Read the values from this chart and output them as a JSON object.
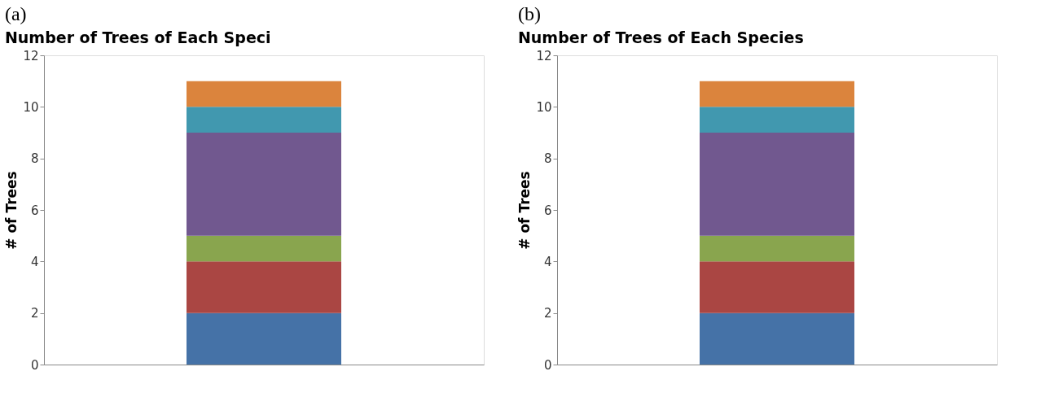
{
  "chart_data": [
    {
      "type": "bar",
      "title": "Number of Trees of Each Speci",
      "ylabel": "# of Trees",
      "annotations": [
        "(a)"
      ],
      "categories": [
        null
      ],
      "stacked": true,
      "ylim": [
        0,
        12
      ],
      "yticks": [
        0,
        2,
        4,
        6,
        8,
        10,
        12
      ],
      "grid": false,
      "legend": false,
      "series": [
        {
          "color": "#4572a7",
          "values": [
            2
          ]
        },
        {
          "color": "#aa4643",
          "values": [
            2
          ]
        },
        {
          "color": "#89a54e",
          "values": [
            1
          ]
        },
        {
          "color": "#71588f",
          "values": [
            4
          ]
        },
        {
          "color": "#4198af",
          "values": [
            1
          ]
        },
        {
          "color": "#db843d",
          "values": [
            1
          ]
        }
      ]
    },
    {
      "type": "bar",
      "title": "Number of Trees of Each Species",
      "ylabel": "# of Trees",
      "annotations": [
        "(b)"
      ],
      "categories": [
        null
      ],
      "stacked": true,
      "ylim": [
        0,
        12
      ],
      "yticks": [
        0,
        2,
        4,
        6,
        8,
        10,
        12
      ],
      "grid": false,
      "legend": false,
      "series": [
        {
          "color": "#4572a7",
          "values": [
            2
          ]
        },
        {
          "color": "#aa4643",
          "values": [
            2
          ]
        },
        {
          "color": "#89a54e",
          "values": [
            1
          ]
        },
        {
          "color": "#71588f",
          "values": [
            4
          ]
        },
        {
          "color": "#4198af",
          "values": [
            1
          ]
        },
        {
          "color": "#db843d",
          "values": [
            1
          ]
        }
      ]
    }
  ]
}
